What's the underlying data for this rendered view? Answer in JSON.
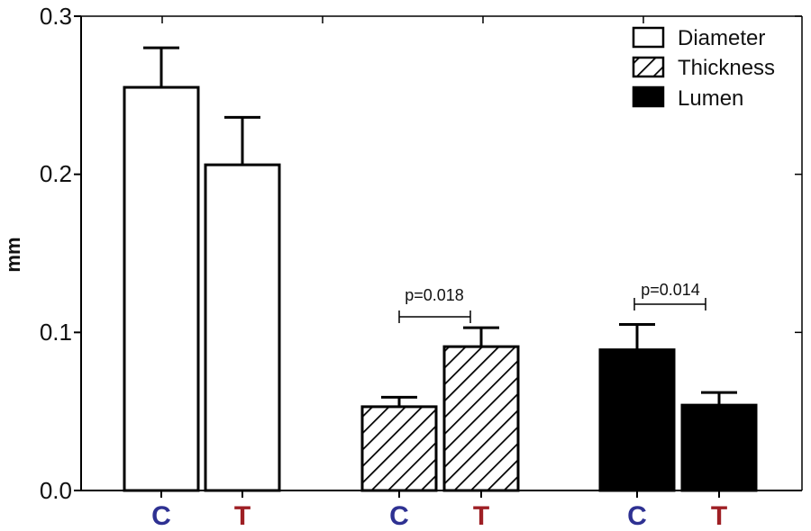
{
  "chart_data": {
    "type": "bar",
    "title": "",
    "xlabel": "",
    "ylabel": "mm",
    "ylim": [
      0,
      0.3
    ],
    "yticks": [
      "0.0",
      "0.1",
      "0.2",
      "0.3"
    ],
    "ytick_values": [
      0,
      0.1,
      0.2,
      0.3
    ],
    "legend_position": "top-right",
    "groups": [
      {
        "name": "Diameter",
        "fill": "open",
        "bars": [
          {
            "category": "C",
            "value": 0.255,
            "error": 0.025
          },
          {
            "category": "T",
            "value": 0.206,
            "error": 0.03
          }
        ]
      },
      {
        "name": "Thickness",
        "fill": "hatched",
        "bars": [
          {
            "category": "C",
            "value": 0.053,
            "error": 0.006
          },
          {
            "category": "T",
            "value": 0.091,
            "error": 0.012
          }
        ],
        "annotation": "p=0.018"
      },
      {
        "name": "Lumen",
        "fill": "solid",
        "bars": [
          {
            "category": "C",
            "value": 0.089,
            "error": 0.016
          },
          {
            "category": "T",
            "value": 0.054,
            "error": 0.008
          }
        ],
        "annotation": "p=0.014"
      }
    ],
    "legend": [
      "Diameter",
      "Thickness",
      "Lumen"
    ],
    "category_colors": {
      "C": "#2e3192",
      "T": "#9e1f24"
    }
  }
}
